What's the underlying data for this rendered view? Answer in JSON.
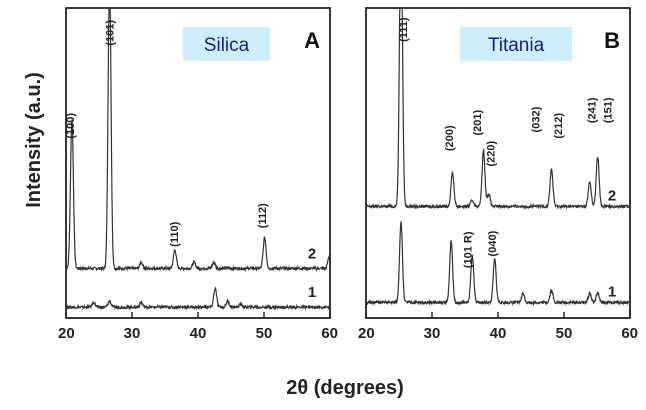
{
  "figure": {
    "ylabel": "Intensity (a.u.)",
    "xlabel": "2θ (degrees)"
  },
  "chart_data": [
    {
      "type": "line",
      "panel_letter": "A",
      "badge": "Silica",
      "badge_color": "#cfeefc",
      "xlim": [
        20,
        60
      ],
      "xticks": [
        20,
        30,
        40,
        50,
        60
      ],
      "ylim": [
        0,
        100
      ],
      "traces": [
        {
          "label": "2",
          "baseline": 16,
          "peaks": [
            [
              20.9,
              48
            ],
            [
              26.6,
              95
            ],
            [
              31.4,
              2
            ],
            [
              36.5,
              6
            ],
            [
              39.4,
              2
            ],
            [
              42.4,
              2
            ],
            [
              50.1,
              10
            ],
            [
              59.9,
              4
            ]
          ]
        },
        {
          "label": "1",
          "baseline": 3.5,
          "peaks": [
            [
              24.2,
              1.5
            ],
            [
              26.6,
              2
            ],
            [
              31.4,
              1.5
            ],
            [
              42.6,
              6
            ],
            [
              44.5,
              2
            ],
            [
              46.5,
              1
            ]
          ]
        }
      ],
      "annotations": [
        {
          "text": "(100)",
          "x": 21.2,
          "y": 62
        },
        {
          "text": "(101)",
          "x": 27.2,
          "y": 92
        },
        {
          "text": "(110)",
          "x": 37.0,
          "y": 27
        },
        {
          "text": "(112)",
          "x": 50.3,
          "y": 33
        }
      ]
    },
    {
      "type": "line",
      "panel_letter": "B",
      "badge": "Titania",
      "badge_color": "#cfeefc",
      "xlim": [
        20,
        60
      ],
      "xticks": [
        20,
        30,
        40,
        50,
        60
      ],
      "ylim": [
        0,
        100
      ],
      "traces": [
        {
          "label": "2",
          "baseline": 36,
          "peaks": [
            [
              25.3,
              98
            ],
            [
              33.1,
              11
            ],
            [
              36.1,
              2
            ],
            [
              37.8,
              18
            ],
            [
              38.6,
              4
            ],
            [
              48.1,
              12
            ],
            [
              53.9,
              8
            ],
            [
              55.1,
              16
            ],
            [
              62.7,
              6
            ]
          ]
        },
        {
          "label": "1",
          "baseline": 5,
          "peaks": [
            [
              25.3,
              26
            ],
            [
              32.9,
              20
            ],
            [
              36.1,
              15
            ],
            [
              39.5,
              14
            ],
            [
              43.8,
              3
            ],
            [
              48.1,
              4
            ],
            [
              53.9,
              3
            ],
            [
              55.1,
              3
            ]
          ]
        }
      ],
      "annotations": [
        {
          "text": "(111)",
          "x": 26.2,
          "y": 93
        },
        {
          "text": "(200)",
          "x": 33.2,
          "y": 58
        },
        {
          "text": "(201)",
          "x": 37.4,
          "y": 63
        },
        {
          "text": "(220)",
          "x": 39.5,
          "y": 53
        },
        {
          "text": "(032)",
          "x": 46.3,
          "y": 64
        },
        {
          "text": "(212)",
          "x": 49.7,
          "y": 62
        },
        {
          "text": "(241)",
          "x": 54.8,
          "y": 67
        },
        {
          "text": "(151)",
          "x": 57.2,
          "y": 67
        },
        {
          "text": "(101 R)",
          "x": 36.0,
          "y": 22
        },
        {
          "text": "(040)",
          "x": 39.7,
          "y": 24
        }
      ]
    }
  ]
}
